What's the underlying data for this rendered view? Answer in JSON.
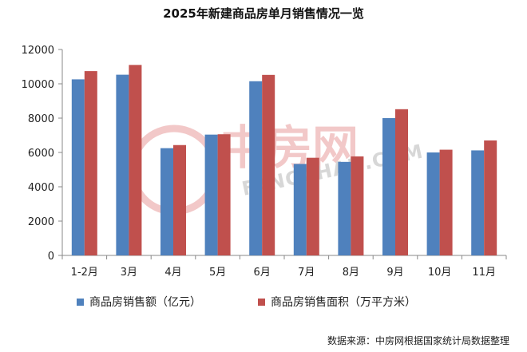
{
  "chart_data": {
    "type": "bar",
    "title": "2025年新建商品房单月销售情况一览",
    "categories": [
      "1-2月",
      "3月",
      "4月",
      "5月",
      "6月",
      "7月",
      "8月",
      "9月",
      "10月",
      "11月"
    ],
    "series": [
      {
        "name": "商品房销售额（亿元）",
        "color": "#4f81bd",
        "values": [
          10260,
          10530,
          6250,
          7040,
          10150,
          5330,
          5450,
          8000,
          6000,
          6120
        ]
      },
      {
        "name": "商品房销售面积（万平方米）",
        "color": "#c0504d",
        "values": [
          10740,
          11100,
          6430,
          7060,
          10520,
          5690,
          5770,
          8520,
          6160,
          6700
        ]
      }
    ],
    "ylim": [
      0,
      12000
    ],
    "yticks": [
      0,
      2000,
      4000,
      6000,
      8000,
      10000,
      12000
    ],
    "grid": false,
    "legend": "bottom"
  },
  "source_note": "数据来源：中房网根据国家统计局数据整理",
  "watermark": {
    "cn": "中房网",
    "en": "FANGCHAN.COM"
  }
}
